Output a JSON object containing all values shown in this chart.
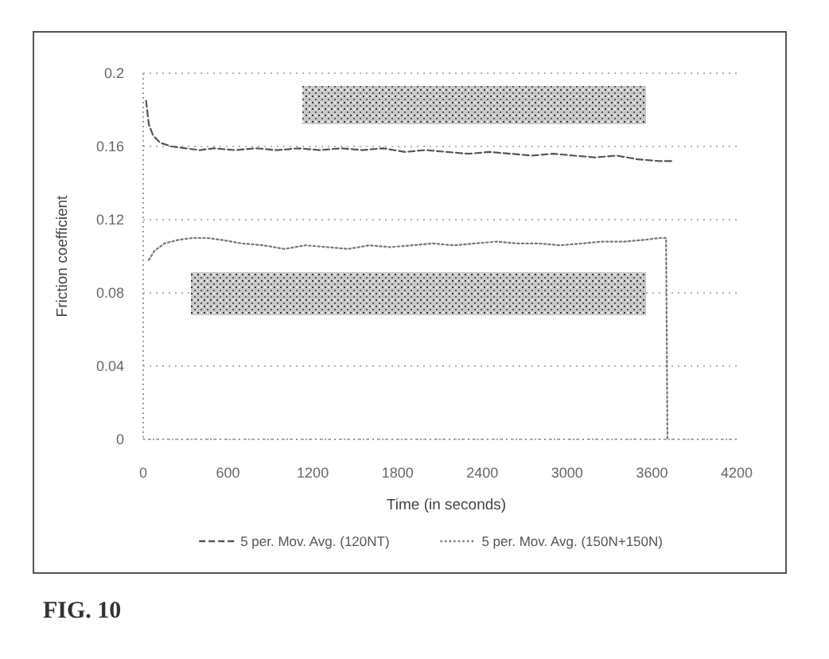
{
  "chart_data": {
    "type": "line",
    "xlabel": "Time (in seconds)",
    "ylabel": "Friction coefficient",
    "xlim": [
      0,
      4200
    ],
    "xticks": [
      0,
      600,
      1200,
      1800,
      2400,
      3000,
      3600,
      4200
    ],
    "ylim": [
      0,
      0.2
    ],
    "yticks": [
      0,
      0.04,
      0.08,
      0.12,
      0.16,
      0.2
    ],
    "grid": "y",
    "legend": "bottom",
    "series": [
      {
        "name": "5 per. Mov. Avg. (120NT)",
        "color": "#555555",
        "line_style": "dashed",
        "x": [
          20,
          40,
          70,
          120,
          200,
          300,
          400,
          500,
          650,
          800,
          950,
          1100,
          1250,
          1400,
          1550,
          1700,
          1850,
          2000,
          2150,
          2300,
          2450,
          2600,
          2750,
          2900,
          3050,
          3200,
          3350,
          3500,
          3650,
          3750
        ],
        "values": [
          0.185,
          0.172,
          0.166,
          0.162,
          0.16,
          0.159,
          0.158,
          0.159,
          0.158,
          0.159,
          0.158,
          0.159,
          0.158,
          0.159,
          0.158,
          0.159,
          0.157,
          0.158,
          0.157,
          0.156,
          0.157,
          0.156,
          0.155,
          0.156,
          0.155,
          0.154,
          0.155,
          0.153,
          0.152,
          0.152
        ]
      },
      {
        "name": "5 per. Mov. Avg. (150N+150N)",
        "color": "#777777",
        "line_style": "dotted",
        "x": [
          40,
          80,
          150,
          250,
          350,
          450,
          550,
          700,
          850,
          1000,
          1150,
          1300,
          1450,
          1600,
          1750,
          1900,
          2050,
          2200,
          2350,
          2500,
          2650,
          2800,
          2950,
          3100,
          3250,
          3400,
          3550,
          3650,
          3700,
          3710
        ],
        "values": [
          0.098,
          0.103,
          0.107,
          0.109,
          0.11,
          0.11,
          0.109,
          0.107,
          0.106,
          0.104,
          0.106,
          0.105,
          0.104,
          0.106,
          0.105,
          0.106,
          0.107,
          0.106,
          0.107,
          0.108,
          0.107,
          0.107,
          0.106,
          0.107,
          0.108,
          0.108,
          0.109,
          0.11,
          0.11,
          0
        ]
      }
    ],
    "annotations": [
      "FIG. 10"
    ]
  }
}
